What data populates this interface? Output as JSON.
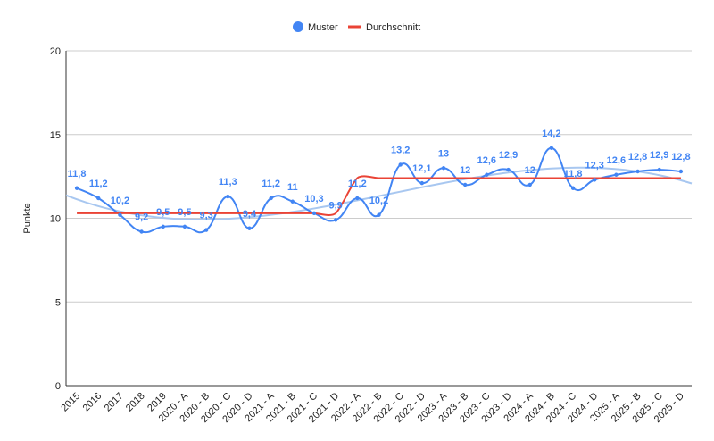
{
  "chart_data": {
    "type": "line",
    "title": "",
    "xlabel": "",
    "ylabel": "Punkte",
    "ylim": [
      0,
      20
    ],
    "yticks": [
      0,
      5,
      10,
      15,
      20
    ],
    "grid": "horizontal",
    "legend_position": "top-center",
    "categories": [
      "2015",
      "2016",
      "2017",
      "2018",
      "2019",
      "2020 - A",
      "2020 - B",
      "2020 - C",
      "2020 - D",
      "2021 - A",
      "2021 - B",
      "2021 - C",
      "2021 - D",
      "2022 - A",
      "2022 - B",
      "2022 - C",
      "2022 - D",
      "2023 - A",
      "2023 - B",
      "2023 - C",
      "2023 - D",
      "2024 - A",
      "2024 - B",
      "2024 - C",
      "2024 - D",
      "2025 - A",
      "2025 - B",
      "2025 - C",
      "2025 - D"
    ],
    "series": [
      {
        "name": "Muster",
        "color": "#4285f4",
        "values": [
          11.8,
          11.2,
          10.2,
          9.2,
          9.5,
          9.5,
          9.3,
          11.3,
          9.4,
          11.2,
          11,
          10.3,
          9.9,
          11.2,
          10.2,
          13.2,
          12.1,
          13,
          12,
          12.6,
          12.9,
          12,
          14.2,
          11.8,
          12.3,
          12.6,
          12.8,
          12.9,
          12.8
        ],
        "labels": [
          "11,8",
          "11,2",
          "10,2",
          "9,2",
          "9,5",
          "9,5",
          "9,3",
          "11,3",
          "9,4",
          "11,2",
          "11",
          "10,3",
          "9,9",
          "11,2",
          "10,2",
          "13,2",
          "12,1",
          "13",
          "12",
          "12,6",
          "12,9",
          "12",
          "14,2",
          "11,8",
          "12,3",
          "12,6",
          "12,8",
          "12,9",
          "12,8"
        ]
      },
      {
        "name": "Durchschnitt",
        "color": "#ea4335",
        "values": [
          10.3,
          10.3,
          10.3,
          10.3,
          10.3,
          10.3,
          10.3,
          10.3,
          10.3,
          10.3,
          10.3,
          10.3,
          10.3,
          12.4,
          12.4,
          12.4,
          12.4,
          12.4,
          12.4,
          12.4,
          12.4,
          12.4,
          12.4,
          12.4,
          12.4,
          12.4,
          12.4,
          12.4,
          12.4
        ]
      }
    ],
    "trendline": {
      "series": "Muster",
      "type": "polynomial",
      "color": "#a8c7f0",
      "start": 11.3,
      "end": 12.1
    }
  }
}
